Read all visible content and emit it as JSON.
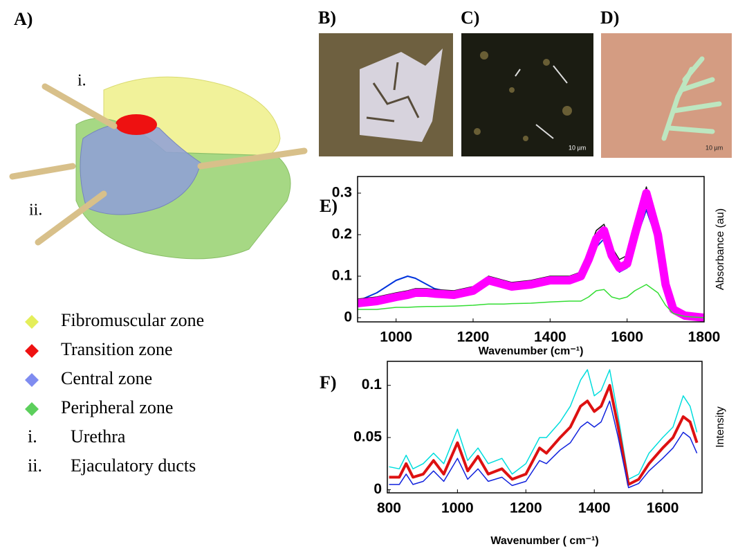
{
  "panel_a": {
    "label": "A)",
    "callouts": [
      "i.",
      "ii."
    ],
    "legend": [
      {
        "text": "Fibromuscular zone",
        "color": "#e4ee5a"
      },
      {
        "text": "Transition zone",
        "color": "#ee1111"
      },
      {
        "text": "Central zone",
        "color": "#7f8cf0"
      },
      {
        "text": "Peripheral zone",
        "color": "#5ccf5c"
      }
    ],
    "notes": [
      {
        "marker": "i.",
        "text": "Urethra"
      },
      {
        "marker": "ii.",
        "text": "Ejaculatory ducts"
      }
    ]
  },
  "panel_b": {
    "label": "B)"
  },
  "panel_c": {
    "label": "C)",
    "scale_bar": "10 µm"
  },
  "panel_d": {
    "label": "D)",
    "scale_bar": "10 µm"
  },
  "chart_data": [
    {
      "type": "line",
      "panel_label": "E)",
      "x_label": "Wavenumber (cm⁻¹)",
      "y_label": "Absorbance (au)",
      "x": [
        900,
        950,
        1000,
        1030,
        1050,
        1080,
        1100,
        1150,
        1200,
        1240,
        1280,
        1300,
        1350,
        1400,
        1450,
        1480,
        1500,
        1520,
        1540,
        1560,
        1580,
        1600,
        1620,
        1650,
        1680,
        1700,
        1720,
        1750,
        1800
      ],
      "series": [
        {
          "color": "#0033dd",
          "values": [
            0.04,
            0.06,
            0.09,
            0.1,
            0.095,
            0.08,
            0.07,
            0.06,
            0.07,
            0.09,
            0.08,
            0.075,
            0.08,
            0.09,
            0.09,
            0.1,
            0.13,
            0.17,
            0.19,
            0.14,
            0.11,
            0.12,
            0.18,
            0.26,
            0.18,
            0.07,
            0.02,
            0.005,
            0.0
          ]
        },
        {
          "color": "#111111",
          "values": [
            0.045,
            0.05,
            0.06,
            0.065,
            0.07,
            0.07,
            0.068,
            0.065,
            0.075,
            0.1,
            0.09,
            0.085,
            0.09,
            0.1,
            0.1,
            0.11,
            0.16,
            0.21,
            0.225,
            0.17,
            0.14,
            0.15,
            0.22,
            0.315,
            0.21,
            0.09,
            0.025,
            0.007,
            0.0
          ]
        },
        {
          "color": "#ff00ff",
          "values": [
            0.035,
            0.04,
            0.05,
            0.055,
            0.06,
            0.06,
            0.058,
            0.055,
            0.065,
            0.09,
            0.08,
            0.075,
            0.08,
            0.09,
            0.09,
            0.1,
            0.14,
            0.19,
            0.21,
            0.15,
            0.12,
            0.13,
            0.2,
            0.3,
            0.2,
            0.08,
            0.02,
            0.005,
            0.0
          ]
        },
        {
          "color": "#33dd33",
          "values": [
            0.02,
            0.02,
            0.025,
            0.025,
            0.026,
            0.027,
            0.027,
            0.028,
            0.03,
            0.033,
            0.033,
            0.034,
            0.035,
            0.038,
            0.04,
            0.04,
            0.05,
            0.065,
            0.068,
            0.05,
            0.045,
            0.05,
            0.065,
            0.08,
            0.06,
            0.03,
            0.01,
            0.003,
            0.0
          ]
        }
      ],
      "xlim": [
        900,
        1800
      ],
      "xticks": [
        1000,
        1200,
        1400,
        1600,
        1800
      ],
      "ylim": [
        -0.01,
        0.34
      ],
      "yticks": [
        0,
        0.1,
        0.2,
        0.3
      ]
    },
    {
      "type": "line",
      "panel_label": "F)",
      "x_label": "Wavenumber ( cm⁻¹)",
      "y_label": "Intensity",
      "x": [
        800,
        830,
        850,
        870,
        900,
        930,
        960,
        1000,
        1030,
        1060,
        1090,
        1130,
        1160,
        1200,
        1240,
        1260,
        1300,
        1330,
        1360,
        1380,
        1400,
        1420,
        1445,
        1470,
        1500,
        1530,
        1560,
        1600,
        1630,
        1660,
        1680,
        1700
      ],
      "series": [
        {
          "color": "#00dddd",
          "values": [
            0.022,
            0.02,
            0.033,
            0.02,
            0.025,
            0.035,
            0.025,
            0.058,
            0.028,
            0.04,
            0.025,
            0.03,
            0.015,
            0.025,
            0.05,
            0.05,
            0.065,
            0.08,
            0.105,
            0.115,
            0.09,
            0.095,
            0.115,
            0.07,
            0.01,
            0.015,
            0.035,
            0.05,
            0.06,
            0.09,
            0.08,
            0.055
          ]
        },
        {
          "color": "#dd1111",
          "values": [
            0.012,
            0.012,
            0.025,
            0.012,
            0.015,
            0.028,
            0.015,
            0.045,
            0.018,
            0.032,
            0.015,
            0.02,
            0.01,
            0.015,
            0.04,
            0.035,
            0.05,
            0.06,
            0.08,
            0.085,
            0.075,
            0.08,
            0.1,
            0.06,
            0.005,
            0.01,
            0.025,
            0.04,
            0.05,
            0.07,
            0.065,
            0.045
          ]
        },
        {
          "color": "#1122dd",
          "values": [
            0.005,
            0.005,
            0.015,
            0.005,
            0.008,
            0.018,
            0.008,
            0.03,
            0.01,
            0.02,
            0.008,
            0.012,
            0.004,
            0.008,
            0.028,
            0.025,
            0.038,
            0.045,
            0.06,
            0.065,
            0.06,
            0.065,
            0.085,
            0.05,
            0.002,
            0.006,
            0.018,
            0.03,
            0.04,
            0.055,
            0.05,
            0.035
          ]
        }
      ],
      "xlim": [
        795,
        1715
      ],
      "xticks": [
        800,
        1000,
        1200,
        1400,
        1600
      ],
      "ylim": [
        -0.003,
        0.123
      ],
      "yticks": [
        0,
        0.05,
        0.1
      ]
    }
  ]
}
